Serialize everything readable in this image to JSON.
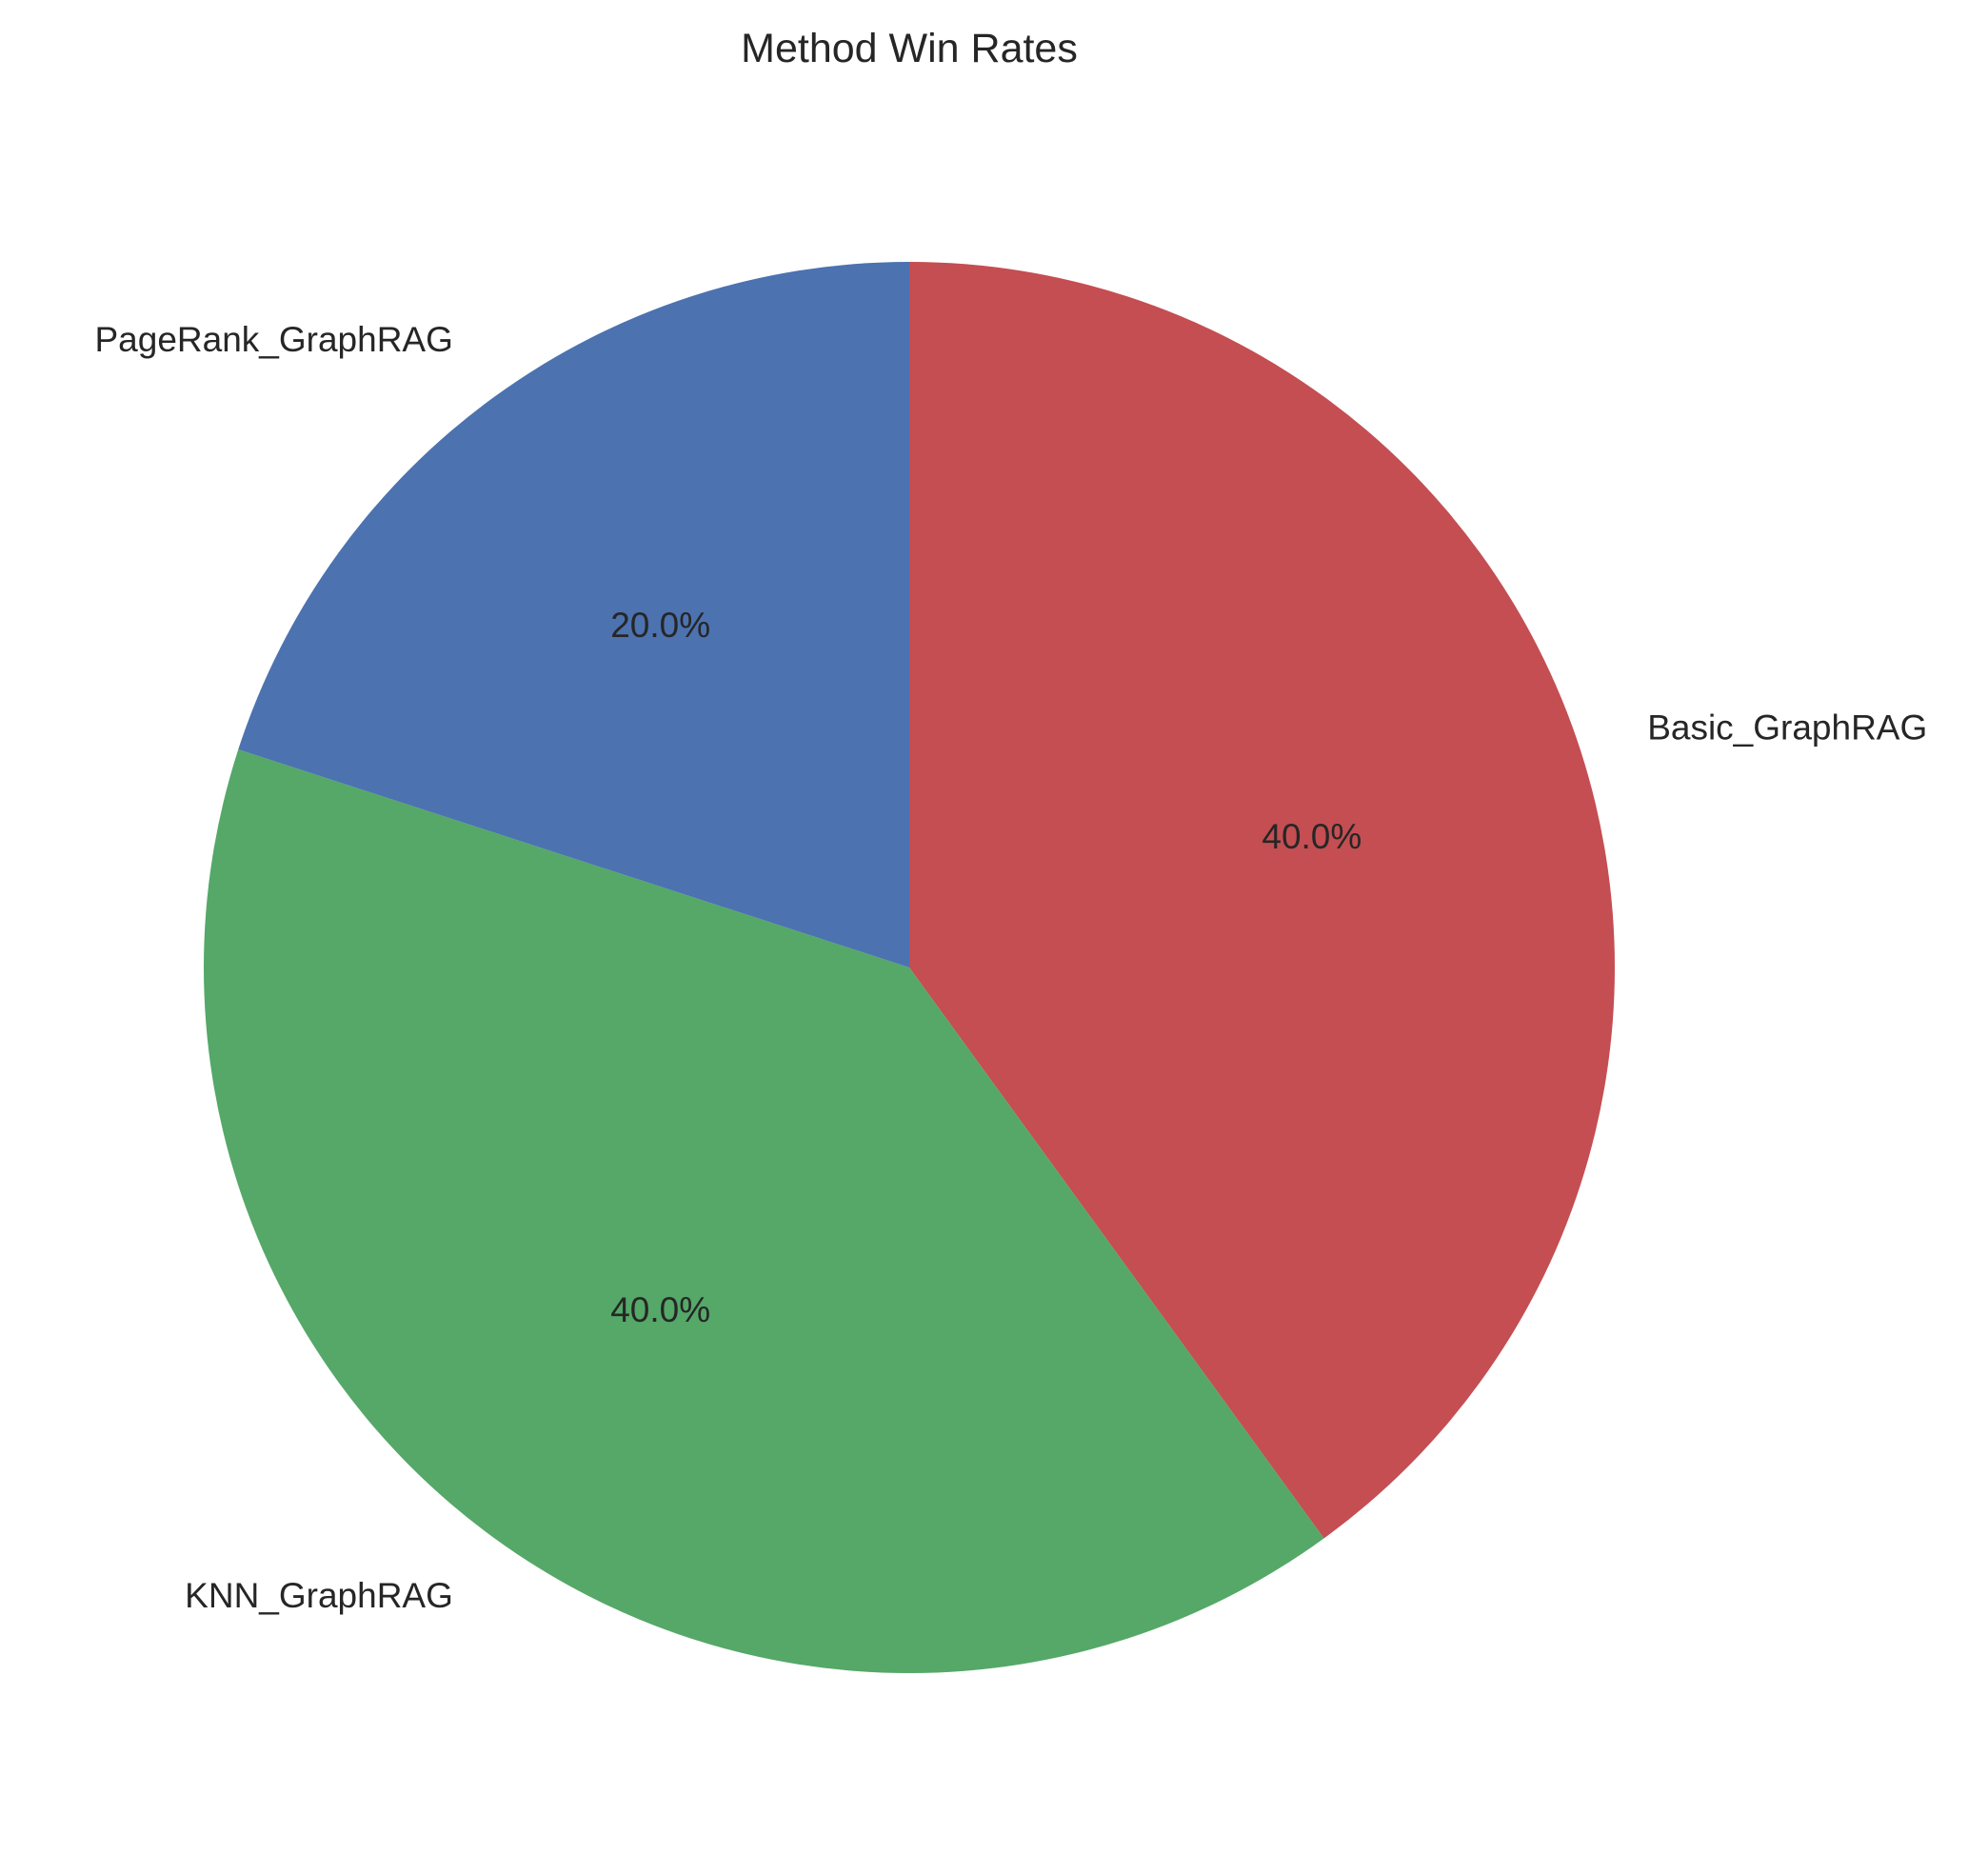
{
  "chart_data": {
    "type": "pie",
    "title": "Method Win Rates",
    "slices": [
      {
        "label": "Basic_GraphRAG",
        "value": 40.0,
        "pct_label": "40.0%",
        "color": "#c44e52"
      },
      {
        "label": "KNN_GraphRAG",
        "value": 40.0,
        "pct_label": "40.0%",
        "color": "#55a868"
      },
      {
        "label": "PageRank_GraphRAG",
        "value": 20.0,
        "pct_label": "20.0%",
        "color": "#4c72b0"
      }
    ],
    "start_angle": "top",
    "direction": "clockwise",
    "legend": "none"
  }
}
